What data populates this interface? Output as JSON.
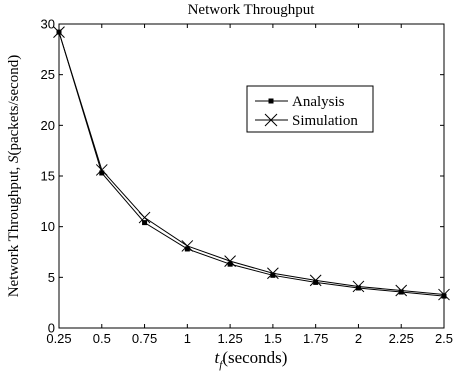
{
  "chart_data": {
    "type": "line",
    "title": "Network Throughput",
    "xlabel_main": "t",
    "xlabel_sub": "f",
    "xlabel_rest": "(seconds)",
    "ylabel_pre": "Network Throughput, ",
    "ylabel_italic": "S",
    "ylabel_post": "(packets/second)",
    "x": [
      0.25,
      0.5,
      0.75,
      1,
      1.25,
      1.5,
      1.75,
      2,
      2.25,
      2.5
    ],
    "x_tick_labels": [
      "0.25",
      "0.5",
      "0.75",
      "1",
      "1.25",
      "1.5",
      "1.75",
      "2",
      "2.25",
      "2.5"
    ],
    "y_tick_labels": [
      "0",
      "5",
      "10",
      "15",
      "20",
      "25",
      "30"
    ],
    "y_ticks": [
      0,
      5,
      10,
      15,
      20,
      25,
      30
    ],
    "xlim": [
      0.25,
      2.5
    ],
    "ylim": [
      0,
      30
    ],
    "grid": false,
    "legend_placement": "top-right",
    "series": [
      {
        "name": "Analysis",
        "marker": "square",
        "color": "#000000",
        "values": [
          29.2,
          15.3,
          10.4,
          7.8,
          6.3,
          5.2,
          4.5,
          3.95,
          3.55,
          3.15
        ]
      },
      {
        "name": "Simulation",
        "marker": "x",
        "color": "#000000",
        "values": [
          29.2,
          15.6,
          10.9,
          8.1,
          6.6,
          5.4,
          4.7,
          4.1,
          3.7,
          3.3
        ]
      }
    ]
  }
}
